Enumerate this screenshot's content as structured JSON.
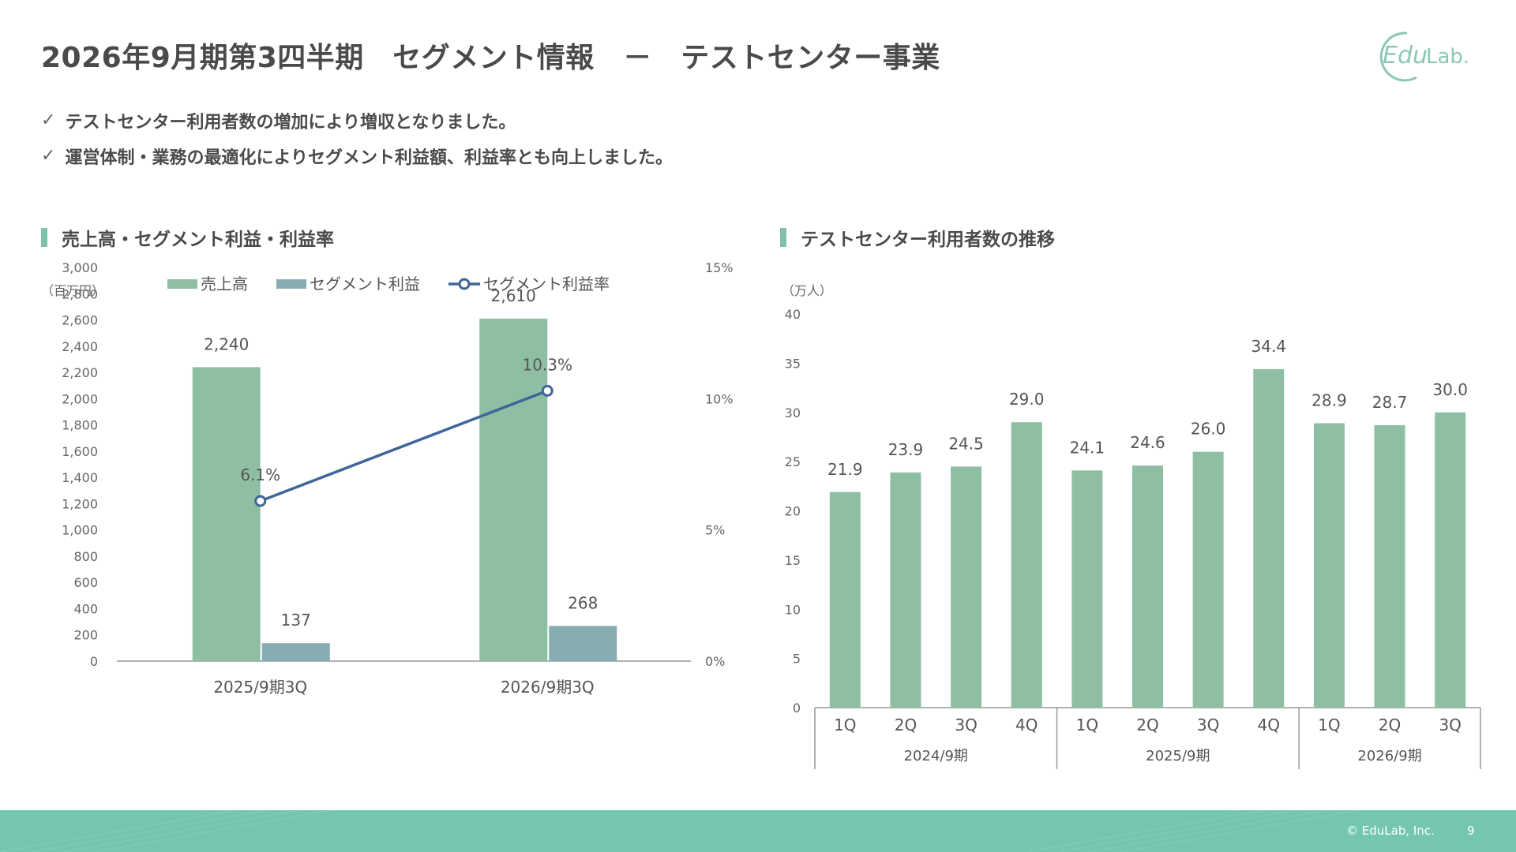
{
  "header": {
    "title": "2026年9月期第3四半期　セグメント情報　－　テストセンター事業",
    "logo_text_1": "Edu",
    "logo_text_2": "Lab."
  },
  "bullets": [
    "テストセンター利用者数の増加により増収となりました。",
    "運営体制・業務の最適化によりセグメント利益額、利益率とも向上しました。"
  ],
  "bullet_icon": "check-icon",
  "colors": {
    "accent": "#7fc1ad",
    "sales_bar": "#8fbfa3",
    "profit_bar": "#87adb3",
    "rate_line": "#3e6699",
    "footer": "#74c6b1"
  },
  "left_section": {
    "heading": "売上高・セグメント利益・利益率"
  },
  "right_section": {
    "heading": "テストセンター利用者数の推移"
  },
  "chart_data": [
    {
      "type": "bar",
      "title": "売上高・セグメント利益・利益率",
      "ylabel": "（百万円）",
      "ylim": [
        0,
        3000
      ],
      "yticks": [
        "0",
        "200",
        "400",
        "600",
        "800",
        "1,000",
        "1,200",
        "1,400",
        "1,600",
        "1,800",
        "2,000",
        "2,200",
        "2,400",
        "2,600",
        "2,800",
        "3,000"
      ],
      "y2lim": [
        0,
        15
      ],
      "y2ticks": [
        "0%",
        "5%",
        "10%",
        "15%"
      ],
      "categories": [
        "2025/9期3Q",
        "2026/9期3Q"
      ],
      "series": [
        {
          "name": "売上高",
          "type": "bar",
          "values": [
            2240,
            2610
          ],
          "labels": [
            "2,240",
            "2,610"
          ]
        },
        {
          "name": "セグメント利益",
          "type": "bar",
          "values": [
            137,
            268
          ],
          "labels": [
            "137",
            "268"
          ]
        },
        {
          "name": "セグメント利益率",
          "type": "line",
          "axis": "right",
          "values": [
            6.1,
            10.3
          ],
          "labels": [
            "6.1%",
            "10.3%"
          ]
        }
      ],
      "legend": "top"
    },
    {
      "type": "bar",
      "title": "テストセンター利用者数の推移",
      "ylabel": "（万人）",
      "ylim": [
        0,
        40
      ],
      "yticks": [
        "0",
        "5",
        "10",
        "15",
        "20",
        "25",
        "30",
        "35",
        "40"
      ],
      "categories": [
        "1Q",
        "2Q",
        "3Q",
        "4Q",
        "1Q",
        "2Q",
        "3Q",
        "4Q",
        "1Q",
        "2Q",
        "3Q"
      ],
      "groups": [
        {
          "label": "2024/9期",
          "count": 4
        },
        {
          "label": "2025/9期",
          "count": 4
        },
        {
          "label": "2026/9期",
          "count": 3
        }
      ],
      "values": [
        21.9,
        23.9,
        24.5,
        29.0,
        24.1,
        24.6,
        26.0,
        34.4,
        28.9,
        28.7,
        30.0
      ],
      "labels": [
        "21.9",
        "23.9",
        "24.5",
        "29.0",
        "24.1",
        "24.6",
        "26.0",
        "34.4",
        "28.9",
        "28.7",
        "30.0"
      ]
    }
  ],
  "footer": {
    "copyright": "© EduLab, Inc.",
    "page_number": "9"
  }
}
